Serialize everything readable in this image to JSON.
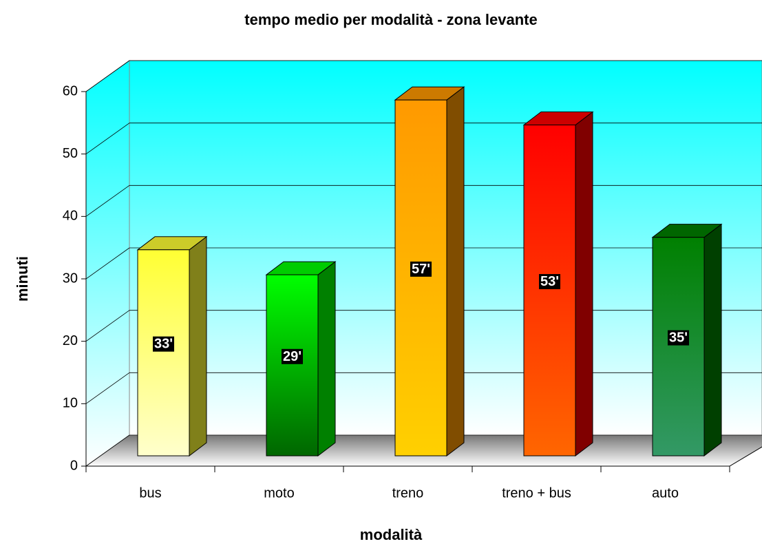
{
  "chart_data": {
    "type": "bar3d",
    "title": "tempo medio per modalità - zona levante",
    "x_label": "modalità",
    "y_label": "minuti",
    "categories": [
      "bus",
      "moto",
      "treno",
      "treno + bus",
      "auto"
    ],
    "values": [
      33,
      29,
      57,
      53,
      35
    ],
    "value_labels": [
      "33'",
      "29'",
      "57'",
      "53'",
      "35'"
    ],
    "colors": [
      [
        "#ffff33",
        "#ffffcc"
      ],
      [
        "#00ff00",
        "#006600"
      ],
      [
        "#ff9900",
        "#ffd000"
      ],
      [
        "#ff0000",
        "#ff6600"
      ],
      [
        "#008000",
        "#339966"
      ]
    ],
    "ylim": [
      0,
      60
    ],
    "yticks": [
      0,
      10,
      20,
      30,
      40,
      50,
      60
    ],
    "grid": true
  }
}
